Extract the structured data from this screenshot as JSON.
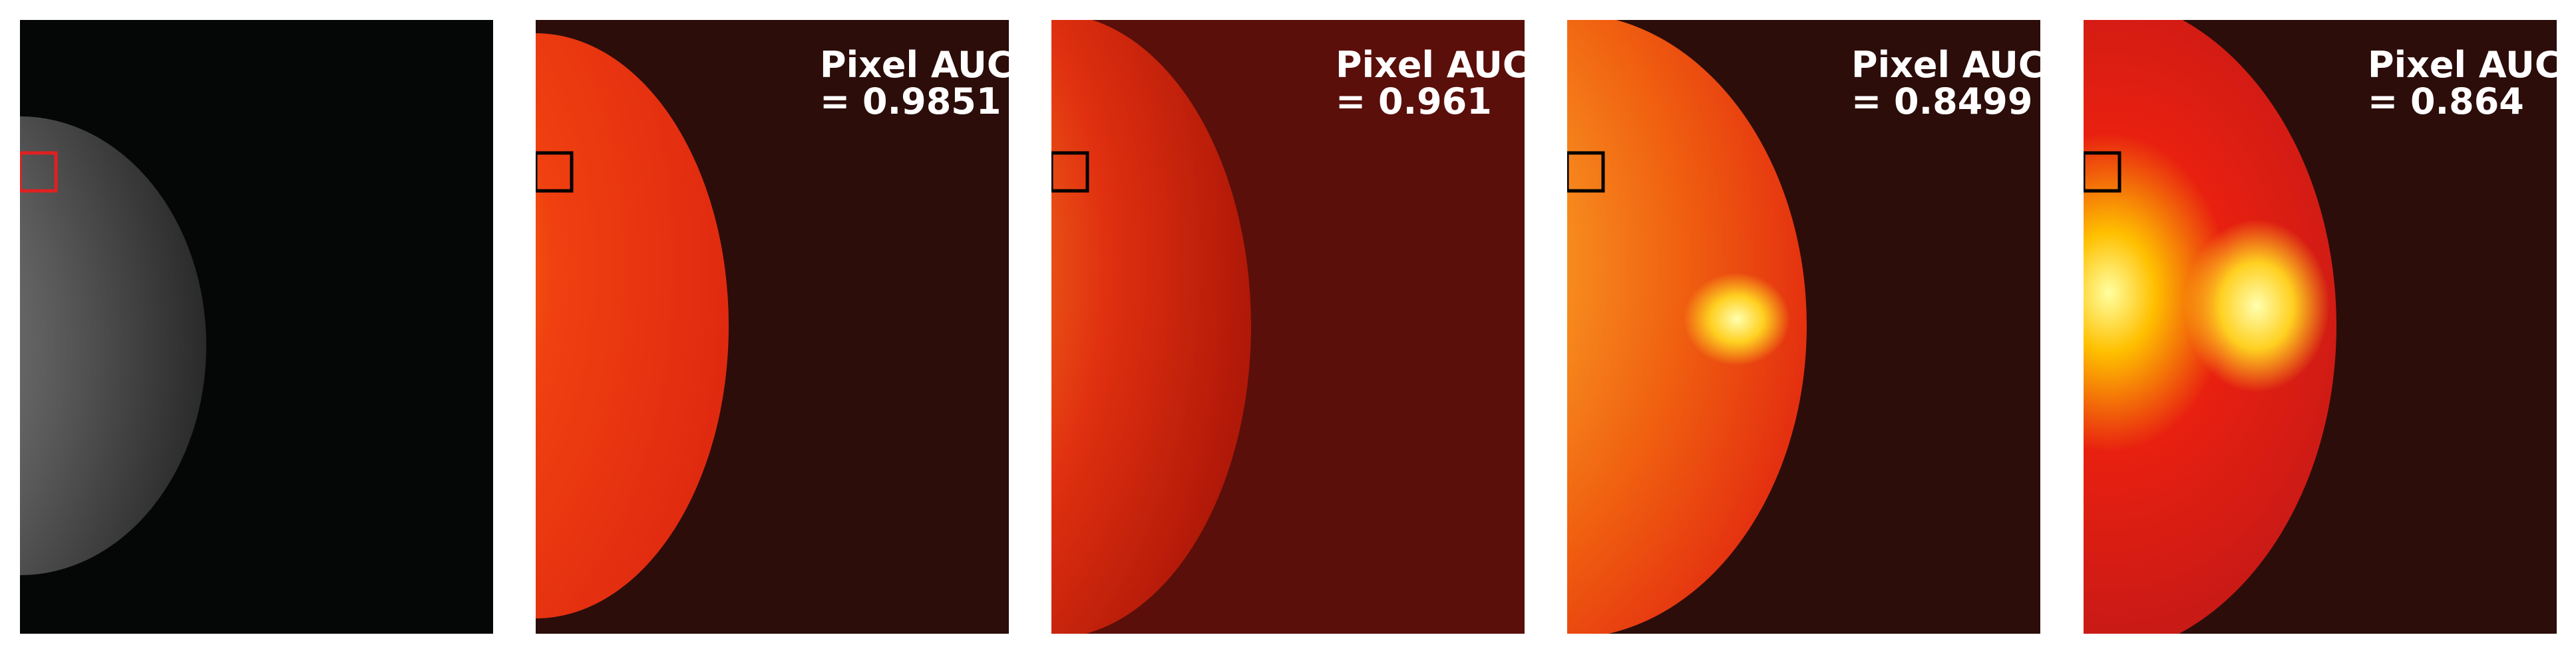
{
  "panels": [
    {
      "label": "Pixel AUC",
      "score": "= 0.9851"
    },
    {
      "label": "Pixel AUC",
      "score": "= 0.961"
    },
    {
      "label": "Pixel AUC",
      "score": "= 0.8499"
    },
    {
      "label": "Pixel AUC",
      "score": "= 0.864"
    }
  ]
}
